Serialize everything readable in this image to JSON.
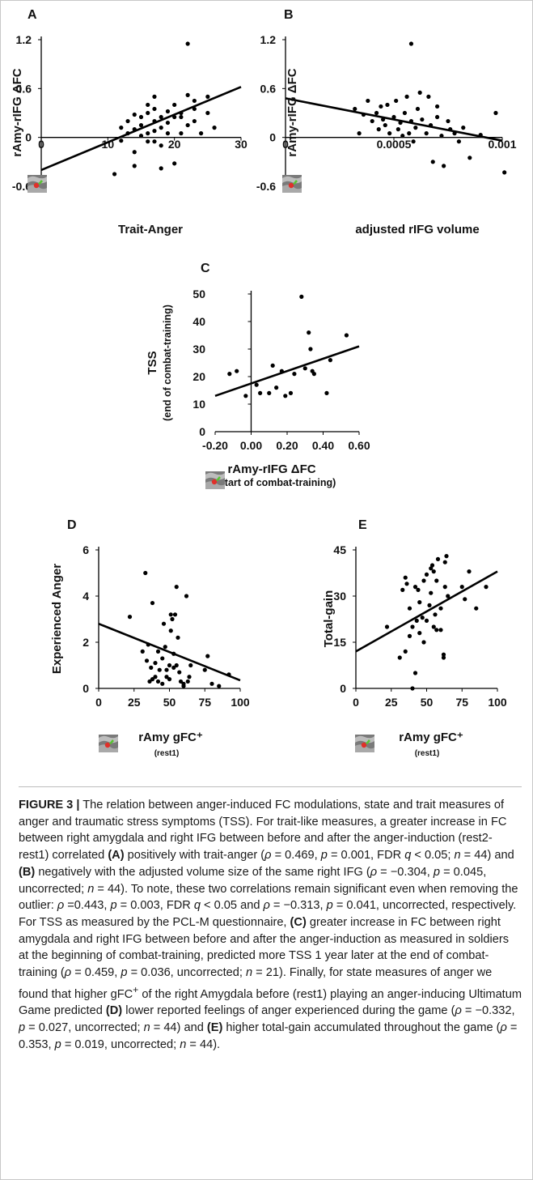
{
  "chart_data": [
    {
      "panel": "A",
      "type": "scatter",
      "xlabel": "Trait-Anger",
      "ylabel": "rAmy-rIFG ΔFC",
      "xlim": [
        0,
        30
      ],
      "ylim": [
        -0.6,
        1.2
      ],
      "xticks": [
        "0",
        "10",
        "20",
        "30"
      ],
      "yticks": [
        "-0.6",
        "0",
        "0.6",
        "1.2"
      ],
      "trend": [
        [
          0,
          -0.4
        ],
        [
          30,
          0.62
        ]
      ],
      "points": [
        [
          11,
          -0.45
        ],
        [
          12,
          0.12
        ],
        [
          12,
          -0.04
        ],
        [
          13,
          0.05
        ],
        [
          13,
          0.2
        ],
        [
          14,
          0.1
        ],
        [
          14,
          -0.18
        ],
        [
          14,
          0.28
        ],
        [
          14,
          -0.35
        ],
        [
          15,
          0.02
        ],
        [
          15,
          0.15
        ],
        [
          15,
          0.25
        ],
        [
          16,
          0.05
        ],
        [
          16,
          0.3
        ],
        [
          16,
          -0.05
        ],
        [
          16,
          0.4
        ],
        [
          17,
          0.35
        ],
        [
          17,
          0.2
        ],
        [
          17,
          0.5
        ],
        [
          17,
          0.08
        ],
        [
          17,
          -0.05
        ],
        [
          18,
          -0.38
        ],
        [
          18,
          0.25
        ],
        [
          18,
          0.12
        ],
        [
          18,
          -0.1
        ],
        [
          19,
          0.05
        ],
        [
          19,
          0.32
        ],
        [
          19,
          0.18
        ],
        [
          20,
          -0.32
        ],
        [
          20,
          0.25
        ],
        [
          20,
          0.4
        ],
        [
          21,
          0.05
        ],
        [
          21,
          0.25
        ],
        [
          21,
          0.3
        ],
        [
          22,
          0.15
        ],
        [
          22,
          0.52
        ],
        [
          22,
          1.15
        ],
        [
          23,
          0.2
        ],
        [
          23,
          0.35
        ],
        [
          23,
          0.45
        ],
        [
          24,
          0.05
        ],
        [
          25,
          0.3
        ],
        [
          25,
          0.5
        ],
        [
          26,
          0.12
        ]
      ],
      "icon": "brain-slice-icon"
    },
    {
      "panel": "B",
      "type": "scatter",
      "xlabel": "adjusted rIFG volume",
      "ylabel": "rAmy-rIFG ΔFC",
      "xlim": [
        0,
        0.001
      ],
      "ylim": [
        -0.6,
        1.2
      ],
      "xticks": [
        "0",
        "0.0005",
        "0.001"
      ],
      "yticks": [
        "-0.6",
        "0",
        "0.6",
        "1.2"
      ],
      "trend": [
        [
          0,
          0.48
        ],
        [
          0.001,
          -0.04
        ]
      ],
      "points": [
        [
          0.00032,
          0.35
        ],
        [
          0.00034,
          0.05
        ],
        [
          0.00036,
          0.28
        ],
        [
          0.00038,
          0.45
        ],
        [
          0.0004,
          0.2
        ],
        [
          0.00042,
          0.3
        ],
        [
          0.00043,
          0.1
        ],
        [
          0.00044,
          0.38
        ],
        [
          0.00045,
          0.22
        ],
        [
          0.00046,
          0.15
        ],
        [
          0.00047,
          0.4
        ],
        [
          0.00048,
          0.05
        ],
        [
          0.0005,
          0.25
        ],
        [
          0.00051,
          0.45
        ],
        [
          0.00052,
          0.1
        ],
        [
          0.00053,
          0.18
        ],
        [
          0.00054,
          0.02
        ],
        [
          0.00055,
          0.3
        ],
        [
          0.00056,
          0.5
        ],
        [
          0.00057,
          0.05
        ],
        [
          0.00058,
          0.2
        ],
        [
          0.00058,
          1.15
        ],
        [
          0.00059,
          -0.05
        ],
        [
          0.0006,
          0.12
        ],
        [
          0.00061,
          0.35
        ],
        [
          0.00062,
          0.55
        ],
        [
          0.00063,
          0.22
        ],
        [
          0.00065,
          0.05
        ],
        [
          0.00066,
          0.5
        ],
        [
          0.00067,
          0.15
        ],
        [
          0.00068,
          -0.3
        ],
        [
          0.0007,
          0.38
        ],
        [
          0.0007,
          0.25
        ],
        [
          0.00072,
          0.02
        ],
        [
          0.00073,
          -0.35
        ],
        [
          0.00075,
          0.2
        ],
        [
          0.00076,
          0.1
        ],
        [
          0.00078,
          0.05
        ],
        [
          0.0008,
          -0.05
        ],
        [
          0.00082,
          0.12
        ],
        [
          0.00085,
          -0.25
        ],
        [
          0.0009,
          0.03
        ],
        [
          0.00097,
          0.3
        ],
        [
          0.00101,
          -0.43
        ]
      ],
      "icon": "brain-slice-icon"
    },
    {
      "panel": "C",
      "type": "scatter",
      "xlabel": "rAmy-rIFG ΔFC",
      "xlabel_sub": "(start of combat-training)",
      "ylabel": "TSS",
      "ylabel_sub": "(end of combat-training)",
      "xlim": [
        -0.2,
        0.6
      ],
      "ylim": [
        0,
        50
      ],
      "xticks": [
        "-0.20",
        "0.00",
        "0.20",
        "0.40",
        "0.60"
      ],
      "yticks": [
        "0",
        "10",
        "20",
        "30",
        "40",
        "50"
      ],
      "trend": [
        [
          -0.2,
          13
        ],
        [
          0.6,
          31
        ]
      ],
      "points": [
        [
          -0.12,
          21
        ],
        [
          -0.08,
          22
        ],
        [
          -0.03,
          13
        ],
        [
          0.03,
          17
        ],
        [
          0.05,
          14
        ],
        [
          0.1,
          14
        ],
        [
          0.12,
          24
        ],
        [
          0.14,
          16
        ],
        [
          0.17,
          22
        ],
        [
          0.19,
          13
        ],
        [
          0.22,
          14
        ],
        [
          0.24,
          21
        ],
        [
          0.28,
          49
        ],
        [
          0.3,
          23
        ],
        [
          0.32,
          36
        ],
        [
          0.33,
          30
        ],
        [
          0.34,
          22
        ],
        [
          0.35,
          21
        ],
        [
          0.42,
          14
        ],
        [
          0.44,
          26
        ],
        [
          0.53,
          35
        ]
      ],
      "icon": "brain-slice-icon"
    },
    {
      "panel": "D",
      "type": "scatter",
      "xlabel": "rAmy gFC⁺",
      "xlabel_sub": "(rest1)",
      "ylabel": "Experienced Anger",
      "xlim": [
        0,
        100
      ],
      "ylim": [
        0,
        6
      ],
      "xticks": [
        "0",
        "25",
        "50",
        "75",
        "100"
      ],
      "yticks": [
        "0",
        "2",
        "4",
        "6"
      ],
      "trend": [
        [
          0,
          2.8
        ],
        [
          100,
          0.35
        ]
      ],
      "points": [
        [
          22,
          3.1
        ],
        [
          31,
          1.6
        ],
        [
          33,
          5.0
        ],
        [
          34,
          1.2
        ],
        [
          35,
          1.9
        ],
        [
          36,
          0.3
        ],
        [
          37,
          0.9
        ],
        [
          38,
          3.7
        ],
        [
          38,
          0.4
        ],
        [
          40,
          0.5
        ],
        [
          40,
          1.1
        ],
        [
          42,
          0.3
        ],
        [
          42,
          1.6
        ],
        [
          43,
          0.8
        ],
        [
          45,
          1.3
        ],
        [
          45,
          0.2
        ],
        [
          46,
          2.8
        ],
        [
          47,
          1.8
        ],
        [
          48,
          0.5
        ],
        [
          48,
          0.8
        ],
        [
          50,
          0.4
        ],
        [
          50,
          1.0
        ],
        [
          51,
          3.2
        ],
        [
          51,
          2.5
        ],
        [
          52,
          3.0
        ],
        [
          53,
          1.5
        ],
        [
          53,
          0.9
        ],
        [
          54,
          3.2
        ],
        [
          55,
          4.4
        ],
        [
          55,
          1.0
        ],
        [
          56,
          2.2
        ],
        [
          57,
          0.7
        ],
        [
          58,
          0.3
        ],
        [
          60,
          0.2
        ],
        [
          60,
          0.1
        ],
        [
          62,
          4.0
        ],
        [
          63,
          0.3
        ],
        [
          64,
          0.5
        ],
        [
          65,
          1.0
        ],
        [
          75,
          0.8
        ],
        [
          77,
          1.4
        ],
        [
          80,
          0.2
        ],
        [
          85,
          0.1
        ],
        [
          92,
          0.6
        ]
      ],
      "icon": "brain-slice-icon"
    },
    {
      "panel": "E",
      "type": "scatter",
      "xlabel": "rAmy gFC⁺",
      "xlabel_sub": "(rest1)",
      "ylabel": "Total-gain",
      "xlim": [
        0,
        100
      ],
      "ylim": [
        0,
        45
      ],
      "xticks": [
        "0",
        "25",
        "50",
        "75",
        "100"
      ],
      "yticks": [
        "0",
        "15",
        "30",
        "45"
      ],
      "trend": [
        [
          0,
          12
        ],
        [
          100,
          38
        ]
      ],
      "points": [
        [
          22,
          20
        ],
        [
          31,
          10
        ],
        [
          33,
          32
        ],
        [
          35,
          36
        ],
        [
          35,
          12
        ],
        [
          36,
          34
        ],
        [
          38,
          17
        ],
        [
          38,
          26
        ],
        [
          40,
          0
        ],
        [
          40,
          20
        ],
        [
          42,
          33
        ],
        [
          42,
          5
        ],
        [
          43,
          22
        ],
        [
          44,
          32
        ],
        [
          45,
          28
        ],
        [
          45,
          18
        ],
        [
          47,
          23
        ],
        [
          48,
          15
        ],
        [
          48,
          35
        ],
        [
          50,
          22
        ],
        [
          50,
          37
        ],
        [
          52,
          27
        ],
        [
          53,
          31
        ],
        [
          53,
          39
        ],
        [
          54,
          40
        ],
        [
          55,
          20
        ],
        [
          55,
          38
        ],
        [
          56,
          24
        ],
        [
          57,
          19
        ],
        [
          57,
          35
        ],
        [
          58,
          42
        ],
        [
          60,
          26
        ],
        [
          60,
          19
        ],
        [
          62,
          10
        ],
        [
          62,
          11
        ],
        [
          63,
          41
        ],
        [
          63,
          33
        ],
        [
          64,
          43
        ],
        [
          65,
          30
        ],
        [
          75,
          33
        ],
        [
          77,
          29
        ],
        [
          80,
          38
        ],
        [
          85,
          26
        ],
        [
          92,
          33
        ]
      ],
      "icon": "brain-slice-icon"
    }
  ],
  "caption": {
    "figure_label": "FIGURE 3 |",
    "text_html": "The relation between anger-induced FC modulations, state and trait measures of anger and traumatic stress symptoms (TSS). For trait-like measures, a greater increase in FC between right amygdala and right IFG between before and after the anger-induction (rest2-rest1) correlated <b>(A)</b> positively with trait-anger (<i>ρ</i> = 0.469, <i>p</i> = 0.001, FDR <i>q</i> &lt; 0.05; <i>n</i> = 44) and <b>(B)</b> negatively with the adjusted volume size of the same right IFG (<i>ρ</i> = −0.304, <i>p</i> = 0.045, uncorrected; <i>n</i> = 44). To note, these two correlations remain significant even when removing the outlier: <i>ρ</i> =0.443, <i>p</i> = 0.003, FDR <i>q</i> &lt; 0.05 and <i>ρ</i> = −0.313, <i>p</i> = 0.041, uncorrected, respectively. For TSS as measured by the PCL-M questionnaire, <b>(C)</b> greater increase in FC between right amygdala and right IFG between before and after the anger-induction as measured in soldiers at the beginning of combat-training, predicted more TSS 1 year later at the end of combat-training (<i>ρ</i> = 0.459, <i>p</i> = 0.036, uncorrected; <i>n</i> = 21). Finally, for state measures of anger we found that higher gFC<sup>+</sup> of the right Amygdala before (rest1) playing an anger-inducing Ultimatum Game predicted <b>(D)</b> lower reported feelings of anger experienced during the game (<i>ρ</i> = −0.332, <i>p</i> = 0.027, uncorrected; <i>n</i> = 44) and <b>(E)</b> higher total-gain accumulated throughout the game (<i>ρ</i> = 0.353, <i>p</i> = 0.019, uncorrected; <i>n</i> = 44)."
  }
}
